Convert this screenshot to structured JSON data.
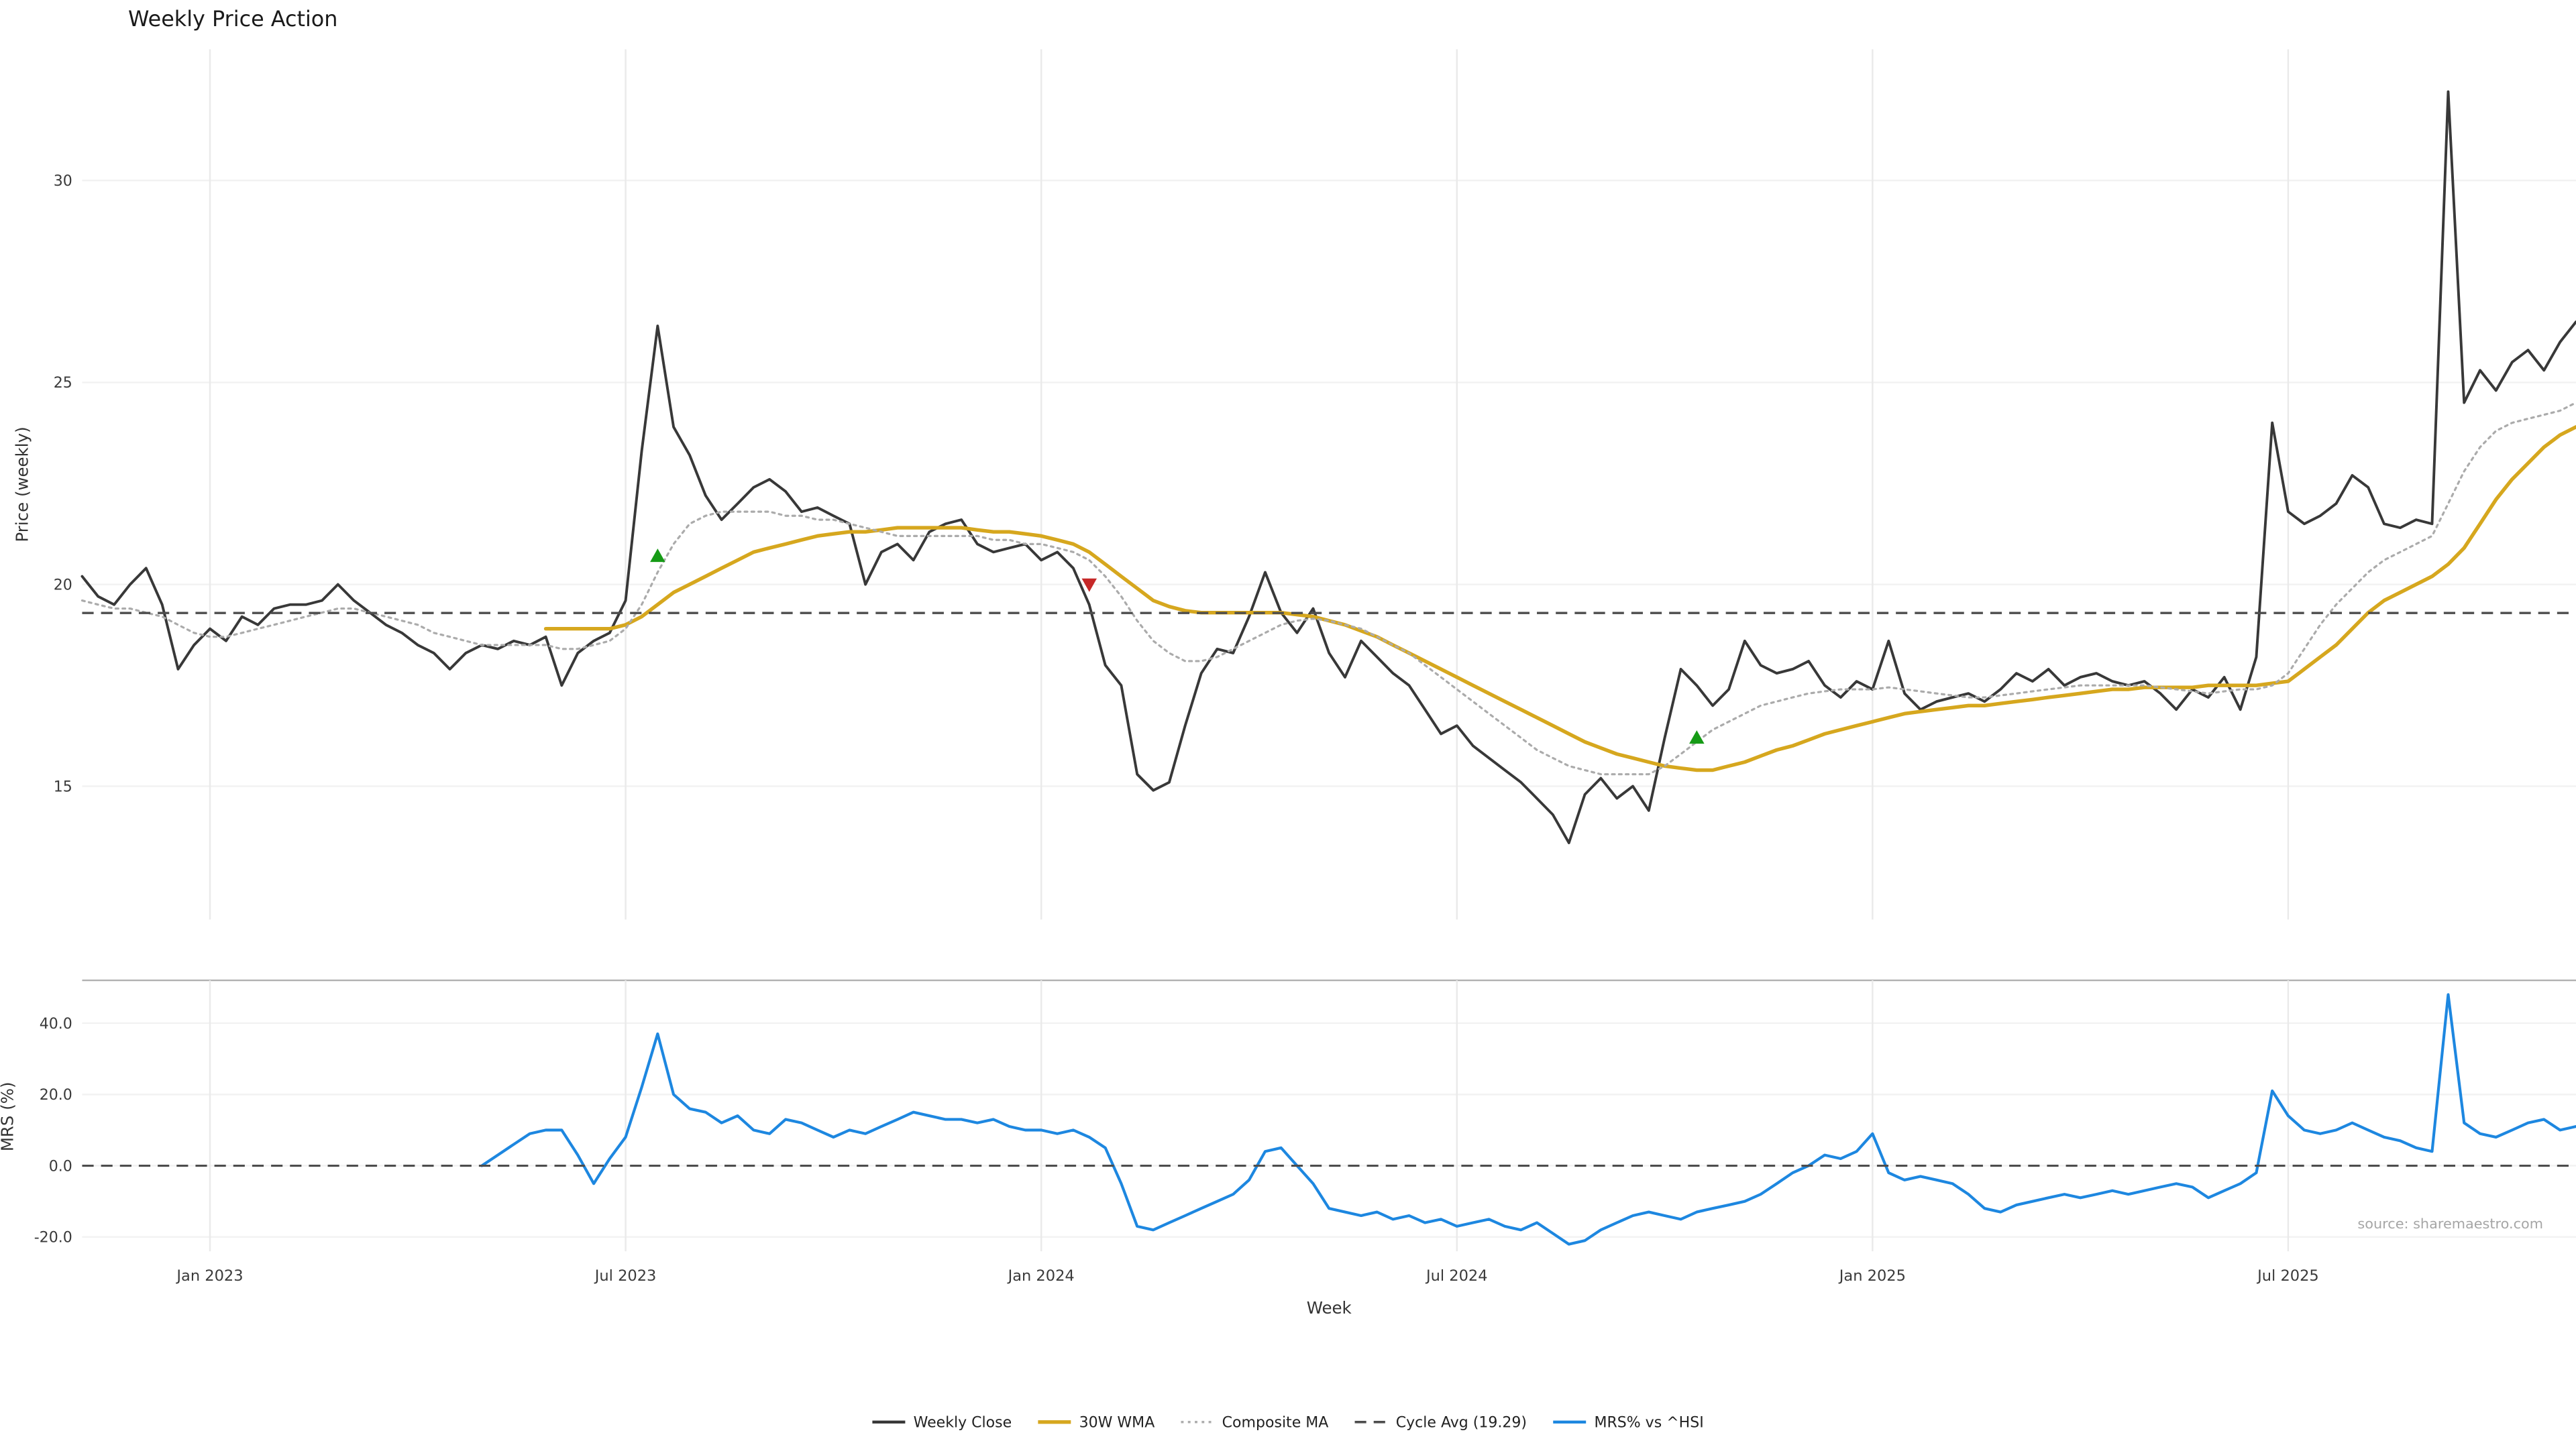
{
  "title": "Weekly Price Action",
  "source_note": "source: sharemaestro.com",
  "colors": {
    "weekly_close": "#383838",
    "wma_30w": "#d6a71e",
    "composite_ma": "#ababab",
    "cycle_avg": "#4d4d4d",
    "mrs": "#1d87e0",
    "buy_signal": "#169b16",
    "sell_signal": "#c62828",
    "grid_v": "#eaeaea",
    "grid_h": "#f2f2f2",
    "tick_text": "#3a3a3a",
    "separator": "#b0b0b0"
  },
  "legend": [
    {
      "label": "Weekly Close",
      "series": "weekly_close",
      "style": "solid",
      "width": 1.8
    },
    {
      "label": "30W WMA",
      "series": "wma_30w",
      "style": "solid",
      "width": 2.2
    },
    {
      "label": "Composite MA",
      "series": "composite_ma",
      "style": "dotted",
      "width": 1.4
    },
    {
      "label": "Cycle Avg (19.29)",
      "series": "cycle_avg",
      "style": "dashed",
      "width": 1.5
    },
    {
      "label": "MRS% vs ^HSI",
      "series": "mrs",
      "style": "solid",
      "width": 1.8
    }
  ],
  "chart_data": {
    "type": "line",
    "title": "Weekly Price Action",
    "xlabel": "Week",
    "weeks_total": 156,
    "x_start": "Nov 2022",
    "x_end": "Nov 2025",
    "xticks": [
      {
        "week": 8,
        "label": "Jan 2023"
      },
      {
        "week": 34,
        "label": "Jul 2023"
      },
      {
        "week": 60,
        "label": "Jan 2024"
      },
      {
        "week": 86,
        "label": "Jul 2024"
      },
      {
        "week": 112,
        "label": "Jan 2025"
      },
      {
        "week": 138,
        "label": "Jul 2025"
      }
    ],
    "panels": [
      {
        "ylabel": "Price (weekly)",
        "ylim": [
          11.7,
          33.25
        ],
        "yticks": [
          {
            "v": 15,
            "label": "15"
          },
          {
            "v": 20,
            "label": "20"
          },
          {
            "v": 25,
            "label": "25"
          },
          {
            "v": 30,
            "label": "30"
          }
        ],
        "series": [
          {
            "name": "Weekly Close",
            "color_key": "weekly_close",
            "style": "solid",
            "width": 1.6,
            "start_week": 0,
            "values": [
              20.2,
              19.7,
              19.5,
              20.0,
              20.4,
              19.5,
              17.9,
              18.5,
              18.9,
              18.6,
              19.2,
              19.0,
              19.4,
              19.5,
              19.5,
              19.6,
              20.0,
              19.6,
              19.3,
              19.0,
              18.8,
              18.5,
              18.3,
              17.9,
              18.3,
              18.5,
              18.4,
              18.6,
              18.5,
              18.7,
              17.5,
              18.3,
              18.6,
              18.8,
              19.6,
              23.3,
              26.4,
              23.9,
              23.2,
              22.2,
              21.6,
              22.0,
              22.4,
              22.6,
              22.3,
              21.8,
              21.9,
              21.7,
              21.5,
              20.0,
              20.8,
              21.0,
              20.6,
              21.3,
              21.5,
              21.6,
              21.0,
              20.8,
              20.9,
              21.0,
              20.6,
              20.8,
              20.4,
              19.5,
              18.0,
              17.5,
              15.3,
              14.9,
              15.1,
              16.5,
              17.8,
              18.4,
              18.3,
              19.2,
              20.3,
              19.3,
              18.8,
              19.4,
              18.3,
              17.7,
              18.6,
              18.2,
              17.8,
              17.5,
              16.9,
              16.3,
              16.5,
              16.0,
              15.7,
              15.4,
              15.1,
              14.7,
              14.3,
              13.6,
              14.8,
              15.2,
              14.7,
              15.0,
              14.4,
              16.2,
              17.9,
              17.5,
              17.0,
              17.4,
              18.6,
              18.0,
              17.8,
              17.9,
              18.1,
              17.5,
              17.2,
              17.6,
              17.4,
              18.6,
              17.3,
              16.9,
              17.1,
              17.2,
              17.3,
              17.1,
              17.4,
              17.8,
              17.6,
              17.9,
              17.5,
              17.7,
              17.8,
              17.6,
              17.5,
              17.6,
              17.3,
              16.9,
              17.4,
              17.2,
              17.7,
              16.9,
              18.2,
              24.0,
              21.8,
              21.5,
              21.7,
              22.0,
              22.7,
              22.4,
              21.5,
              21.4,
              21.6,
              21.5,
              32.2,
              24.5,
              25.3,
              24.8,
              25.5,
              25.8,
              25.3,
              26.0,
              26.5
            ]
          },
          {
            "name": "30W WMA",
            "color_key": "wma_30w",
            "style": "solid",
            "width": 2.2,
            "start_week": 29,
            "values": [
              18.9,
              18.9,
              18.9,
              18.9,
              18.9,
              19.0,
              19.2,
              19.5,
              19.8,
              20.0,
              20.2,
              20.4,
              20.6,
              20.8,
              20.9,
              21.0,
              21.1,
              21.2,
              21.25,
              21.3,
              21.3,
              21.35,
              21.4,
              21.4,
              21.4,
              21.4,
              21.4,
              21.35,
              21.3,
              21.3,
              21.25,
              21.2,
              21.1,
              21.0,
              20.8,
              20.5,
              20.2,
              19.9,
              19.6,
              19.45,
              19.35,
              19.3,
              19.3,
              19.3,
              19.3,
              19.3,
              19.3,
              19.25,
              19.2,
              19.1,
              19.0,
              18.85,
              18.7,
              18.5,
              18.3,
              18.1,
              17.9,
              17.7,
              17.5,
              17.3,
              17.1,
              16.9,
              16.7,
              16.5,
              16.3,
              16.1,
              15.95,
              15.8,
              15.7,
              15.6,
              15.5,
              15.45,
              15.4,
              15.4,
              15.5,
              15.6,
              15.75,
              15.9,
              16.0,
              16.15,
              16.3,
              16.4,
              16.5,
              16.6,
              16.7,
              16.8,
              16.85,
              16.9,
              16.95,
              17.0,
              17.0,
              17.05,
              17.1,
              17.15,
              17.2,
              17.25,
              17.3,
              17.35,
              17.4,
              17.4,
              17.45,
              17.45,
              17.45,
              17.45,
              17.5,
              17.5,
              17.5,
              17.5,
              17.55,
              17.6,
              17.9,
              18.2,
              18.5,
              18.9,
              19.3,
              19.6,
              19.8,
              20.0,
              20.2,
              20.5,
              20.9,
              21.5,
              22.1,
              22.6,
              23.0,
              23.4,
              23.7,
              23.9
            ]
          },
          {
            "name": "Composite MA",
            "color_key": "composite_ma",
            "style": "dotted",
            "width": 1.3,
            "start_week": 0,
            "values": [
              19.6,
              19.5,
              19.4,
              19.4,
              19.3,
              19.2,
              19.0,
              18.8,
              18.7,
              18.7,
              18.8,
              18.9,
              19.0,
              19.1,
              19.2,
              19.3,
              19.4,
              19.4,
              19.3,
              19.2,
              19.1,
              19.0,
              18.8,
              18.7,
              18.6,
              18.5,
              18.5,
              18.5,
              18.5,
              18.5,
              18.4,
              18.4,
              18.5,
              18.6,
              18.9,
              19.5,
              20.3,
              21.0,
              21.5,
              21.7,
              21.8,
              21.8,
              21.8,
              21.8,
              21.7,
              21.7,
              21.6,
              21.6,
              21.5,
              21.4,
              21.3,
              21.2,
              21.2,
              21.2,
              21.2,
              21.2,
              21.2,
              21.1,
              21.1,
              21.0,
              21.0,
              20.9,
              20.8,
              20.6,
              20.2,
              19.7,
              19.1,
              18.6,
              18.3,
              18.1,
              18.1,
              18.2,
              18.4,
              18.6,
              18.8,
              19.0,
              19.1,
              19.15,
              19.1,
              19.0,
              18.9,
              18.7,
              18.5,
              18.3,
              18.0,
              17.7,
              17.4,
              17.1,
              16.8,
              16.5,
              16.2,
              15.9,
              15.7,
              15.5,
              15.4,
              15.3,
              15.3,
              15.3,
              15.3,
              15.5,
              15.8,
              16.1,
              16.4,
              16.6,
              16.8,
              17.0,
              17.1,
              17.2,
              17.3,
              17.35,
              17.4,
              17.4,
              17.4,
              17.45,
              17.4,
              17.35,
              17.3,
              17.25,
              17.2,
              17.2,
              17.25,
              17.3,
              17.35,
              17.4,
              17.45,
              17.5,
              17.5,
              17.5,
              17.5,
              17.5,
              17.45,
              17.4,
              17.35,
              17.3,
              17.35,
              17.4,
              17.4,
              17.5,
              17.8,
              18.4,
              19.0,
              19.5,
              19.9,
              20.3,
              20.6,
              20.8,
              21.0,
              21.2,
              22.0,
              22.8,
              23.4,
              23.8,
              24.0,
              24.1,
              24.2,
              24.3,
              24.5
            ]
          },
          {
            "name": "Cycle Avg (19.29)",
            "color_key": "cycle_avg",
            "style": "dashed",
            "width": 1.4,
            "const_value": 19.29
          }
        ],
        "signals": [
          {
            "week": 36,
            "price": 20.7,
            "type": "buy"
          },
          {
            "week": 63,
            "price": 20.0,
            "type": "sell"
          },
          {
            "week": 101,
            "price": 16.2,
            "type": "buy"
          }
        ]
      },
      {
        "ylabel": "MRS (%)",
        "ylim": [
          -24,
          52
        ],
        "yticks": [
          {
            "v": -20,
            "label": "-20.0"
          },
          {
            "v": 0,
            "label": "0.0"
          },
          {
            "v": 20,
            "label": "20.0"
          },
          {
            "v": 40,
            "label": "40.0"
          }
        ],
        "series": [
          {
            "name": "MRS% vs ^HSI",
            "color_key": "mrs",
            "style": "solid",
            "width": 1.7,
            "start_week": 25,
            "values": [
              0,
              3,
              6,
              9,
              10,
              10,
              3,
              -5,
              2,
              8,
              22,
              37,
              20,
              16,
              15,
              12,
              14,
              10,
              9,
              13,
              12,
              10,
              8,
              10,
              9,
              11,
              13,
              15,
              14,
              13,
              13,
              12,
              13,
              11,
              10,
              10,
              9,
              10,
              8,
              5,
              -5,
              -17,
              -18,
              -16,
              -14,
              -12,
              -10,
              -8,
              -4,
              4,
              5,
              0,
              -5,
              -12,
              -13,
              -14,
              -13,
              -15,
              -14,
              -16,
              -15,
              -17,
              -16,
              -15,
              -17,
              -18,
              -16,
              -19,
              -22,
              -21,
              -18,
              -16,
              -14,
              -13,
              -14,
              -15,
              -13,
              -12,
              -11,
              -10,
              -8,
              -5,
              -2,
              0,
              3,
              2,
              4,
              9,
              -2,
              -4,
              -3,
              -4,
              -5,
              -8,
              -12,
              -13,
              -11,
              -10,
              -9,
              -8,
              -9,
              -8,
              -7,
              -8,
              -7,
              -6,
              -5,
              -6,
              -9,
              -7,
              -5,
              -2,
              21,
              14,
              10,
              9,
              10,
              12,
              10,
              8,
              7,
              5,
              4,
              48,
              12,
              9,
              8,
              10,
              12,
              13,
              10,
              11
            ]
          },
          {
            "name": "Zero Line",
            "color_key": "cycle_avg",
            "style": "dashed",
            "width": 1.3,
            "const_value": 0
          }
        ]
      }
    ]
  }
}
